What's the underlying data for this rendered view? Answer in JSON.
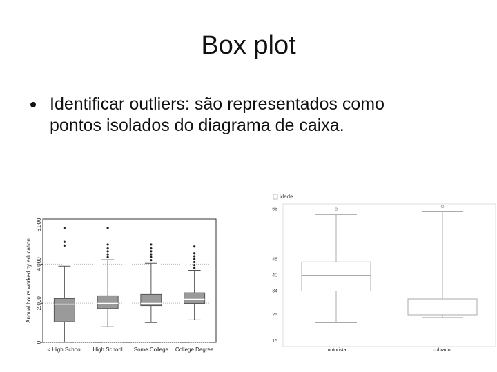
{
  "title": "Box plot",
  "bullets": [
    "Identificar outliers: são representados como pontos isolados do diagrama de caixa."
  ],
  "chart_data": [
    {
      "type": "box",
      "ylabel": "Annual hours worked by education",
      "categories": [
        "< High School",
        "High School",
        "Some College",
        "College Degree"
      ],
      "boxes": [
        {
          "min": 0,
          "q1": 1050,
          "median": 1950,
          "q3": 2240,
          "max": 3900,
          "outliers": [
            4950,
            5130,
            5850
          ]
        },
        {
          "min": 800,
          "q1": 1730,
          "median": 1990,
          "q3": 2380,
          "max": 4220,
          "outliers": [
            4350,
            4500,
            4650,
            4800,
            5000,
            5850
          ]
        },
        {
          "min": 1010,
          "q1": 1880,
          "median": 1990,
          "q3": 2450,
          "max": 4040,
          "outliers": [
            4200,
            4350,
            4500,
            4650,
            4800,
            5000
          ]
        },
        {
          "min": 1150,
          "q1": 1990,
          "median": 2200,
          "q3": 2530,
          "max": 3680,
          "outliers": [
            3800,
            3950,
            4100,
            4250,
            4400,
            4550,
            4900
          ]
        }
      ],
      "color": "#555555",
      "ylim": [
        0,
        6300
      ],
      "yticks": [
        0,
        {
          "value": 2000,
          "label": "2,000"
        },
        {
          "value": 4000,
          "label": "4,000"
        },
        {
          "value": 6000,
          "label": "6,000"
        }
      ],
      "grid": true
    },
    {
      "type": "box",
      "series_name": "idade",
      "categories": [
        "motorista",
        "cobrador"
      ],
      "boxes": [
        {
          "min": 22,
          "q1": 34,
          "median": 40,
          "q3": 45,
          "max": 63,
          "outliers": [
            65
          ]
        },
        {
          "min": 24,
          "q1": 25,
          "median": 25,
          "q3": 31,
          "max": 64,
          "outliers": [
            66
          ]
        }
      ],
      "color": "#aaaaaa",
      "ylim": [
        13,
        67
      ],
      "yticks": [
        15,
        25,
        34,
        40,
        46,
        65
      ],
      "grid": false
    }
  ]
}
